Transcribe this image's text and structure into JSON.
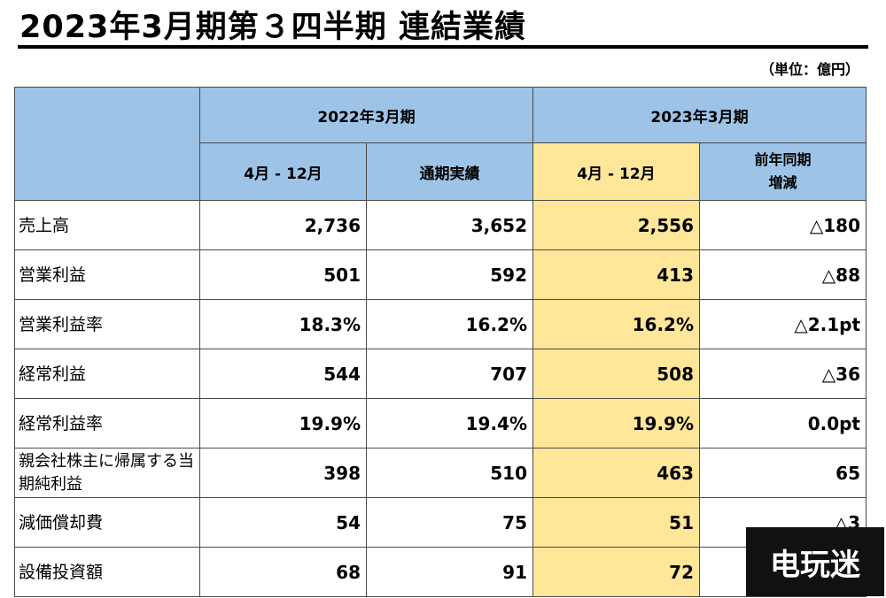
{
  "title": "2023年3月期第３四半期 連結業績",
  "unit": "（単位：億円）",
  "table": {
    "group_headers": [
      "2022年3月期",
      "2023年3月期"
    ],
    "sub_headers": [
      "4月 - 12月",
      "通期実績",
      "4月 - 12月",
      "前年同期\n増減"
    ],
    "rows": [
      {
        "label": "売上高",
        "values": [
          "2,736",
          "3,652",
          "2,556",
          "△180"
        ]
      },
      {
        "label": "営業利益",
        "values": [
          "501",
          "592",
          "413",
          "△88"
        ]
      },
      {
        "label": "営業利益率",
        "values": [
          "18.3%",
          "16.2%",
          "16.2%",
          "△2.1pt"
        ]
      },
      {
        "label": "経常利益",
        "values": [
          "544",
          "707",
          "508",
          "△36"
        ]
      },
      {
        "label": "経常利益率",
        "values": [
          "19.9%",
          "19.4%",
          "19.9%",
          "0.0pt"
        ]
      },
      {
        "label": "親会社株主に帰属する当期純利益",
        "values": [
          "398",
          "510",
          "463",
          "65"
        ]
      },
      {
        "label": "減価償却費",
        "values": [
          "54",
          "75",
          "51",
          "△3"
        ]
      },
      {
        "label": "設備投資額",
        "values": [
          "68",
          "91",
          "72",
          ""
        ]
      }
    ]
  },
  "watermark": "电玩迷",
  "colors": {
    "header_blue": "#9dc3e6",
    "highlight_yellow": "#ffe699"
  }
}
